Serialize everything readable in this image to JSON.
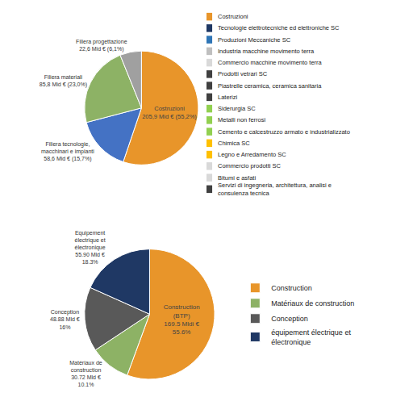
{
  "chart_data": [
    {
      "type": "pie",
      "values": [
        55.2,
        15.7,
        23.0,
        6.1
      ],
      "colors": [
        "#E8952A",
        "#4472C4",
        "#8DB265",
        "#A0A0A0"
      ],
      "value_labels": [
        "Costruzioni\n205,9 Mid € (55,2%)",
        "Filiera tecnologie,\nmacchinari e impianti\n58,6 Mid € (15,7%)",
        "Filiera materiali\n85,8 Mid € (23,0%)",
        "Filiera progettazione\n22,6 Mid € (6,1%)"
      ],
      "annotations": [
        {
          "text": "Costruzioni",
          "color": "#E8952A"
        },
        {
          "text": "Tecnologie elettrotecniche ed elettroniche SC",
          "color": "#1F3864"
        },
        {
          "text": "Produzioni Meccaniche SC",
          "color": "#2E75B6"
        },
        {
          "text": "Industria macchine movimento terra",
          "color": "#BFBFBF"
        },
        {
          "text": "Commercio macchine movimento terra",
          "color": "#D9D9D9"
        },
        {
          "text": "Prodotti vetrari SC",
          "color": "#404040"
        },
        {
          "text": "Piastrelle ceramica, ceramica sanitaria",
          "color": "#404040"
        },
        {
          "text": "Laterizi",
          "color": "#404040"
        },
        {
          "text": "Siderurgia SC",
          "color": "#92D050"
        },
        {
          "text": "Metalli non ferrosi",
          "color": "#92D050"
        },
        {
          "text": "Cemento e calcestruzzo armato e industrializzato",
          "color": "#92D050"
        },
        {
          "text": "Chimica SC",
          "color": "#FFC000"
        },
        {
          "text": "Legno e Arredamento SC",
          "color": "#FFC000"
        },
        {
          "text": "Commercio prodotti SC",
          "color": "#D9D9D9"
        },
        {
          "text": "Bitumi e asfati",
          "color": "#D9D9D9"
        },
        {
          "text": "Servizi di ingegneria, architettura, analisi e\nconsulenza tecnica",
          "color": "#404040"
        }
      ]
    },
    {
      "type": "pie",
      "categories": [
        "Construction",
        "Matériaux de construction",
        "Conception",
        "équipement électrique et\nélectronique"
      ],
      "values": [
        55.6,
        10.1,
        16.0,
        18.3
      ],
      "colors": [
        "#E8952A",
        "#8DB265",
        "#595959",
        "#1F3864"
      ],
      "value_labels": [
        "Construction\n(BTP)\n169.5 Mldi €\n55.6%",
        "Matériaux de\nconstruction\n30.72 Mld €\n10.1%",
        "Conception\n48.88 Mld €\n16%",
        "Equipement\nélectrique et\nélectronique\n55.90 Mld €\n18.3%"
      ],
      "legend": "right"
    }
  ]
}
